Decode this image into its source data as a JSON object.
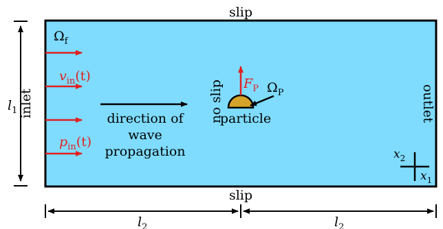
{
  "colors": {
    "fluid": "#7fdcff",
    "particle": "#d4a42a",
    "red": "#e02020",
    "black": "#000000"
  },
  "boundaries": {
    "top": "slip",
    "bottom": "slip",
    "left": "inlet",
    "right": "outlet",
    "particle_wall": "no slip"
  },
  "domain": {
    "fluid_symbol": "Ω",
    "fluid_sub": "f",
    "particle_symbol": "Ω",
    "particle_sub": "P",
    "particle_label": "particle"
  },
  "inflow": {
    "velocity_sym": "v",
    "velocity_sub": "in",
    "velocity_arg": "(t)",
    "pressure_sym": "p",
    "pressure_sub": "in",
    "pressure_arg": "(t)"
  },
  "force": {
    "sym": "F",
    "sub": "P"
  },
  "wave_text": [
    "direction of",
    "wave",
    "propagation"
  ],
  "dimensions": {
    "height_sym": "l",
    "height_sub": "1",
    "half_sym": "l",
    "half_sub": "2"
  },
  "axes": {
    "x1_sym": "x",
    "x1_sub": "1",
    "x2_sym": "x",
    "x2_sub": "2"
  }
}
